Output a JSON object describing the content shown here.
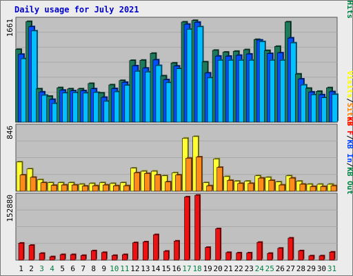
{
  "chart_data": {
    "type": "bar",
    "title": "Daily usage for July 2021",
    "categories": [
      "1",
      "2",
      "3",
      "4",
      "5",
      "6",
      "7",
      "8",
      "9",
      "10",
      "11",
      "12",
      "13",
      "14",
      "15",
      "16",
      "17",
      "18",
      "19",
      "20",
      "21",
      "22",
      "23",
      "24",
      "25",
      "26",
      "27",
      "28",
      "29",
      "30",
      "31"
    ],
    "weekend_days": [
      "3",
      "4",
      "10",
      "11",
      "17",
      "18",
      "24",
      "25",
      "31"
    ],
    "panels": [
      {
        "name": "hits-files-pages",
        "ymax": 1661,
        "ytick_label": "1661",
        "legend": [
          {
            "text": "Pages",
            "color": "#00c0ff"
          },
          {
            "text": "/",
            "color": "#000000"
          },
          {
            "text": "Files",
            "color": "#0050ff"
          },
          {
            "text": "/",
            "color": "#000000"
          },
          {
            "text": "Hits",
            "color": "#008040"
          }
        ],
        "series": [
          {
            "name": "Hits",
            "color": "#1e7a5c",
            "values": [
              1175,
              1625,
              537,
              417,
              556,
              537,
              537,
              624,
              470,
              602,
              672,
              996,
              1000,
              1111,
              747,
              955,
              1617,
              1642,
              972,
              1160,
              1130,
              1144,
              1170,
              1335,
              1156,
              1223,
              1618,
              777,
              546,
              497,
              555
            ]
          },
          {
            "name": "Files",
            "color": "#0050ff",
            "values": [
              1095,
              1541,
              487,
              366,
              515,
              505,
              506,
              538,
              400,
              541,
              643,
              909,
              872,
              1005,
              685,
              905,
              1581,
              1613,
              793,
              1066,
              1064,
              1079,
              1099,
              1325,
              1107,
              1118,
              1359,
              696,
              486,
              442,
              491
            ]
          },
          {
            "name": "Pages",
            "color": "#00c0ff",
            "values": [
              1024,
              1473,
              434,
              300,
              470,
              475,
              469,
              479,
              336,
              490,
              594,
              822,
              810,
              914,
              637,
              862,
              1500,
              1540,
              715,
              1000,
              1000,
              1000,
              1000,
              1300,
              1000,
              1000,
              1280,
              600,
              441,
              394,
              447
            ]
          }
        ]
      },
      {
        "name": "visits-sites",
        "ymax": 846,
        "ytick_label": "846",
        "legend": [
          {
            "text": "Visits",
            "color": "#ffff00"
          },
          {
            "text": "/",
            "color": "#000000"
          },
          {
            "text": "Sites",
            "color": "#ff8000"
          }
        ],
        "series": [
          {
            "name": "Visits",
            "color": "#ffff33",
            "values": [
              380,
              290,
              150,
              110,
              110,
              110,
              90,
              100,
              110,
              100,
              110,
              300,
              260,
              260,
              200,
              240,
              690,
              712,
              110,
              420,
              190,
              130,
              130,
              200,
              180,
              120,
              200,
              130,
              90,
              90,
              90
            ]
          },
          {
            "name": "Sites",
            "color": "#ff8c1a",
            "values": [
              210,
              180,
              110,
              75,
              80,
              80,
              65,
              70,
              80,
              70,
              70,
              240,
              230,
              210,
              120,
              210,
              430,
              445,
              70,
              310,
              140,
              100,
              100,
              170,
              140,
              80,
              170,
              90,
              60,
              60,
              70
            ]
          }
        ]
      },
      {
        "name": "kbytes",
        "ymax": 152880,
        "ytick_label": "152880",
        "legend": [
          {
            "text": "KB F",
            "color": "#ff0000"
          },
          {
            "text": "/",
            "color": "#000000"
          },
          {
            "text": "KB In",
            "color": "#0040ff"
          },
          {
            "text": "/",
            "color": "#000000"
          },
          {
            "text": "KB Out",
            "color": "#008040"
          }
        ],
        "series": [
          {
            "name": "KB F",
            "color": "#ee1111",
            "values": [
              40000,
              35000,
              16000,
              8000,
              13000,
              13000,
              11000,
              22000,
              18000,
              11000,
              13000,
              41000,
              43000,
              60000,
              21000,
              45000,
              149000,
              152880,
              30000,
              74000,
              18000,
              17000,
              17000,
              42000,
              16000,
              28000,
              52000,
              22000,
              10000,
              10000,
              19000
            ]
          }
        ]
      }
    ]
  }
}
